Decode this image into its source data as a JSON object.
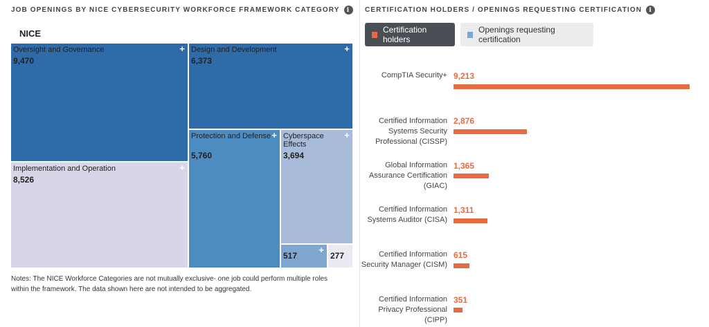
{
  "left_panel": {
    "title": "JOB OPENINGS BY NICE CYBERSECURITY WORKFORCE FRAMEWORK CATEGORY",
    "root_label": "NICE",
    "notes": "Notes: The NICE Workforce Categories are not mutually exclusive- one job could perform multiple roles within the framework. The data shown here are not intended to be aggregated."
  },
  "right_panel": {
    "title": "CERTIFICATION HOLDERS / OPENINGS REQUESTING CERTIFICATION",
    "toggle_active": "Certification holders",
    "toggle_inactive": "Openings requesting certification"
  },
  "colors": {
    "accent": "#e86a3f",
    "toggle_active_bg": "#4a4f55",
    "openings_swatch": "#7ba7d4"
  },
  "chart_data": [
    {
      "type": "treemap",
      "title": "JOB OPENINGS BY NICE CYBERSECURITY WORKFORCE FRAMEWORK CATEGORY",
      "root": "NICE",
      "items": [
        {
          "label": "Oversight and Governance",
          "display": "9,470",
          "value": 9470,
          "color": "#2f6aa9"
        },
        {
          "label": "Design and Development",
          "display": "6,373",
          "value": 6373,
          "color": "#2f6aa9"
        },
        {
          "label": "Implementation and Operation",
          "display": "8,526",
          "value": 8526,
          "color": "#d6d6e8"
        },
        {
          "label": "Protection and Defense",
          "display": "5,760",
          "value": 5760,
          "color": "#4d8cc0"
        },
        {
          "label": "Cyberspace Effects",
          "display": "3,694",
          "value": 3694,
          "color": "#a8bcd9"
        },
        {
          "label": "",
          "display": "517",
          "value": 517,
          "color": "#7ea6cf"
        },
        {
          "label": "",
          "display": "277",
          "value": 277,
          "color": "#eaeaf2"
        }
      ]
    },
    {
      "type": "bar",
      "title": "CERTIFICATION HOLDERS / OPENINGS REQUESTING CERTIFICATION",
      "series_name": "Certification holders",
      "categories": [
        "CompTIA Security+",
        "Certified Information Systems Security Professional (CISSP)",
        "Global Information Assurance Certification (GIAC)",
        "Certified Information Systems Auditor (CISA)",
        "Certified Information Security Manager (CISM)",
        "Certified Information Privacy Professional (CIPP)"
      ],
      "values": [
        9213,
        2876,
        1365,
        1311,
        615,
        351
      ],
      "value_labels": [
        "9,213",
        "2,876",
        "1,365",
        "1,311",
        "615",
        "351"
      ]
    }
  ]
}
